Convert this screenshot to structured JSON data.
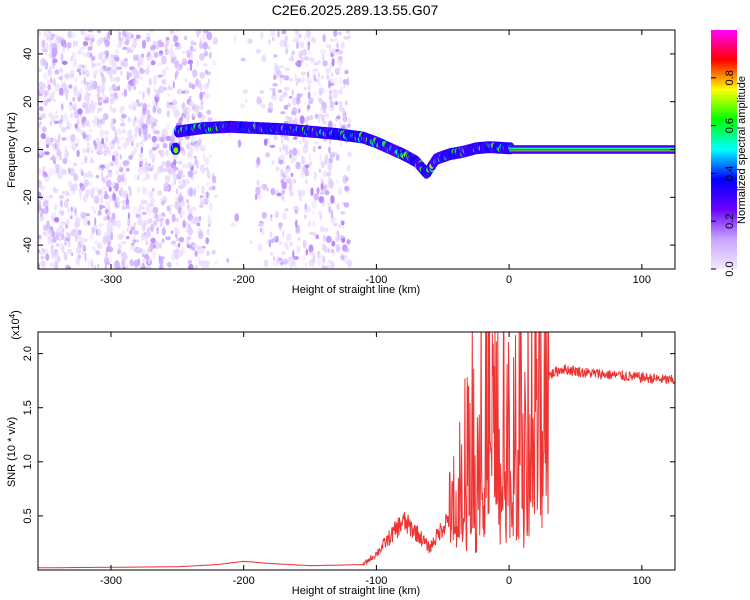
{
  "title": "C2E6.2025.289.13.55.G07",
  "chart_data": [
    {
      "type": "heatmap",
      "name": "spectrogram",
      "xlabel": "Height of straight line (km)",
      "ylabel": "Frequency (Hz)",
      "xlim": [
        -355,
        125
      ],
      "ylim": [
        -50,
        50
      ],
      "xticks": [
        -300,
        -200,
        -100,
        0,
        100
      ],
      "yticks": [
        -40,
        -20,
        0,
        20,
        40
      ],
      "ridge": [
        {
          "x": -250,
          "y": 7.5
        },
        {
          "x": -230,
          "y": 9
        },
        {
          "x": -210,
          "y": 9.5
        },
        {
          "x": -190,
          "y": 9
        },
        {
          "x": -170,
          "y": 8.5
        },
        {
          "x": -150,
          "y": 7.5
        },
        {
          "x": -130,
          "y": 6.5
        },
        {
          "x": -110,
          "y": 5
        },
        {
          "x": -100,
          "y": 3
        },
        {
          "x": -90,
          "y": 0.5
        },
        {
          "x": -80,
          "y": -2
        },
        {
          "x": -70,
          "y": -5
        },
        {
          "x": -62,
          "y": -10
        },
        {
          "x": -55,
          "y": -4
        },
        {
          "x": -45,
          "y": -2
        },
        {
          "x": -35,
          "y": -1
        },
        {
          "x": -25,
          "y": 0.5
        },
        {
          "x": -15,
          "y": 1
        },
        {
          "x": 0,
          "y": 0.5
        },
        {
          "x": 125,
          "y": 0.3
        }
      ]
    },
    {
      "type": "colorbar",
      "name": "amplitude-scale",
      "label": "Normalized spectral amplitude",
      "range": [
        0,
        1
      ],
      "ticks": [
        "0.0",
        "0.2",
        "0.4",
        "0.6",
        "0.8"
      ],
      "colors": [
        "#f2e8ff",
        "#c9a4ff",
        "#6a00ff",
        "#0000ff",
        "#00ffff",
        "#00ff00",
        "#ffff00",
        "#ff0000",
        "#ff00ff"
      ]
    },
    {
      "type": "line",
      "name": "snr",
      "xlabel": "Height of straight line (km)",
      "ylabel": "SNR (10 * v/v)",
      "multiplier": "(x10",
      "multiplier_exp": "4",
      "xlim": [
        -355,
        125
      ],
      "ylim": [
        0,
        2.2
      ],
      "xticks": [
        -300,
        -200,
        -100,
        0,
        100
      ],
      "yticks": [
        "0.5",
        "1.0",
        "1.5",
        "2.0"
      ],
      "color": "#ee3333",
      "series_envelope": [
        {
          "x": -355,
          "y": 0.02
        },
        {
          "x": -250,
          "y": 0.03
        },
        {
          "x": -220,
          "y": 0.05
        },
        {
          "x": -200,
          "y": 0.08
        },
        {
          "x": -180,
          "y": 0.06
        },
        {
          "x": -150,
          "y": 0.04
        },
        {
          "x": -110,
          "y": 0.05
        },
        {
          "x": -100,
          "y": 0.15
        },
        {
          "x": -90,
          "y": 0.3
        },
        {
          "x": -80,
          "y": 0.45
        },
        {
          "x": -70,
          "y": 0.35
        },
        {
          "x": -60,
          "y": 0.2
        },
        {
          "x": -50,
          "y": 0.4
        },
        {
          "x": -40,
          "y": 0.6
        },
        {
          "x": -35,
          "y": 1.0
        },
        {
          "x": -30,
          "y": 1.3
        },
        {
          "x": -25,
          "y": 1.1
        },
        {
          "x": -20,
          "y": 1.5
        },
        {
          "x": -15,
          "y": 1.6
        },
        {
          "x": -10,
          "y": 1.3
        },
        {
          "x": 0,
          "y": 1.2
        },
        {
          "x": 10,
          "y": 1.4
        },
        {
          "x": 20,
          "y": 1.6
        },
        {
          "x": 30,
          "y": 1.8
        },
        {
          "x": 40,
          "y": 1.86
        },
        {
          "x": 60,
          "y": 1.82
        },
        {
          "x": 80,
          "y": 1.8
        },
        {
          "x": 100,
          "y": 1.78
        },
        {
          "x": 125,
          "y": 1.75
        }
      ]
    }
  ]
}
